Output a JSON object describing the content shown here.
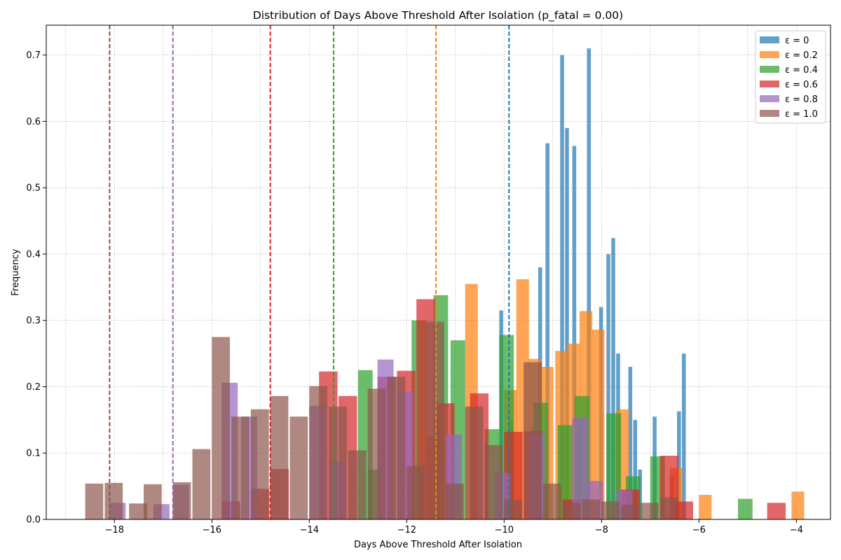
{
  "chart_data": {
    "type": "histogram",
    "title": "Distribution of Days Above Threshold After Isolation (p_fatal = 0.00)",
    "xlabel": "Days Above Threshold After Isolation",
    "ylabel": "Frequency",
    "xlim": [
      -19.4,
      -3.3
    ],
    "ylim": [
      0,
      0.745
    ],
    "xticks": [
      -18,
      -16,
      -14,
      -12,
      -10,
      -8,
      -6,
      -4
    ],
    "yticks": [
      0.0,
      0.1,
      0.2,
      0.3,
      0.4,
      0.5,
      0.6,
      0.7
    ],
    "grid": true,
    "legend_position": "top-right",
    "bar_opacity": 0.7,
    "series": [
      {
        "name": "ε = 0",
        "color": "#1f77b4",
        "bin_width": 0.08,
        "mean_line": -9.9,
        "bins": [
          [
            -10.1,
            0.315
          ],
          [
            -9.9,
            0.15
          ],
          [
            -9.45,
            0.14
          ],
          [
            -9.3,
            0.38
          ],
          [
            -9.15,
            0.567
          ],
          [
            -8.85,
            0.7
          ],
          [
            -8.75,
            0.59
          ],
          [
            -8.6,
            0.563
          ],
          [
            -8.5,
            0.14
          ],
          [
            -8.3,
            0.71
          ],
          [
            -8.05,
            0.32
          ],
          [
            -7.9,
            0.4
          ],
          [
            -7.8,
            0.424
          ],
          [
            -7.7,
            0.25
          ],
          [
            -7.45,
            0.23
          ],
          [
            -7.35,
            0.15
          ],
          [
            -7.25,
            0.075
          ],
          [
            -6.95,
            0.155
          ],
          [
            -6.6,
            0.065
          ],
          [
            -6.45,
            0.163
          ],
          [
            -6.35,
            0.25
          ]
        ]
      },
      {
        "name": "ε = 0.2",
        "color": "#ff7f0e",
        "bin_width": 0.26,
        "mean_line": -11.4,
        "bins": [
          [
            -11.6,
            0.125
          ],
          [
            -10.8,
            0.355
          ],
          [
            -10.0,
            0.195
          ],
          [
            -9.75,
            0.362
          ],
          [
            -9.5,
            0.242
          ],
          [
            -9.25,
            0.23
          ],
          [
            -8.95,
            0.254
          ],
          [
            -8.7,
            0.265
          ],
          [
            -8.45,
            0.314
          ],
          [
            -8.2,
            0.286
          ],
          [
            -7.7,
            0.166
          ],
          [
            -6.6,
            0.077
          ],
          [
            -6.0,
            0.037
          ],
          [
            -4.1,
            0.042
          ]
        ]
      },
      {
        "name": "ε = 0.4",
        "color": "#2ca02c",
        "bin_width": 0.3,
        "mean_line": -13.5,
        "bins": [
          [
            -13.0,
            0.225
          ],
          [
            -12.8,
            0.075
          ],
          [
            -11.9,
            0.3
          ],
          [
            -11.45,
            0.338
          ],
          [
            -11.1,
            0.27
          ],
          [
            -10.4,
            0.136
          ],
          [
            -10.1,
            0.278
          ],
          [
            -9.4,
            0.176
          ],
          [
            -8.9,
            0.142
          ],
          [
            -8.55,
            0.186
          ],
          [
            -7.9,
            0.16
          ],
          [
            -7.5,
            0.065
          ],
          [
            -7.0,
            0.095
          ],
          [
            -5.2,
            0.031
          ]
        ]
      },
      {
        "name": "ε = 0.6",
        "color": "#d62728",
        "bin_width": 0.38,
        "mean_line": -14.8,
        "bins": [
          [
            -15.8,
            0.027
          ],
          [
            -15.2,
            0.046
          ],
          [
            -14.8,
            0.076
          ],
          [
            -13.8,
            0.223
          ],
          [
            -13.4,
            0.186
          ],
          [
            -12.6,
            0.215
          ],
          [
            -12.2,
            0.224
          ],
          [
            -11.8,
            0.332
          ],
          [
            -11.4,
            0.175
          ],
          [
            -10.7,
            0.19
          ],
          [
            -10.0,
            0.132
          ],
          [
            -9.6,
            0.133
          ],
          [
            -8.8,
            0.03
          ],
          [
            -7.6,
            0.045
          ],
          [
            -6.8,
            0.096
          ],
          [
            -6.5,
            0.027
          ],
          [
            -4.6,
            0.025
          ]
        ]
      },
      {
        "name": "ε = 0.8",
        "color": "#9467bd",
        "bin_width": 0.33,
        "mean_line": -16.8,
        "bins": [
          [
            -18.1,
            0.025
          ],
          [
            -17.2,
            0.023
          ],
          [
            -16.8,
            0.052
          ],
          [
            -15.8,
            0.206
          ],
          [
            -15.4,
            0.155
          ],
          [
            -14.0,
            0.171
          ],
          [
            -13.6,
            0.087
          ],
          [
            -12.6,
            0.241
          ],
          [
            -12.2,
            0.193
          ],
          [
            -11.2,
            0.128
          ],
          [
            -10.2,
            0.07
          ],
          [
            -9.5,
            0.13
          ],
          [
            -8.6,
            0.153
          ],
          [
            -8.3,
            0.058
          ],
          [
            -7.7,
            0.044
          ]
        ]
      },
      {
        "name": "ε = 1.0",
        "color": "#8c564b",
        "bin_width": 0.37,
        "mean_line": -18.1,
        "bins": [
          [
            -18.6,
            0.054
          ],
          [
            -18.2,
            0.055
          ],
          [
            -17.7,
            0.024
          ],
          [
            -17.4,
            0.053
          ],
          [
            -16.8,
            0.056
          ],
          [
            -16.4,
            0.106
          ],
          [
            -16.0,
            0.275
          ],
          [
            -15.6,
            0.155
          ],
          [
            -15.2,
            0.166
          ],
          [
            -14.8,
            0.186
          ],
          [
            -14.4,
            0.155
          ],
          [
            -14.0,
            0.201
          ],
          [
            -13.6,
            0.17
          ],
          [
            -13.2,
            0.104
          ],
          [
            -12.8,
            0.197
          ],
          [
            -12.4,
            0.215
          ],
          [
            -12.0,
            0.08
          ],
          [
            -11.6,
            0.298
          ],
          [
            -11.2,
            0.054
          ],
          [
            -10.8,
            0.17
          ],
          [
            -10.4,
            0.112
          ],
          [
            -10.0,
            0.03
          ],
          [
            -9.6,
            0.237
          ],
          [
            -9.2,
            0.054
          ],
          [
            -8.8,
            0.025
          ],
          [
            -8.4,
            0.03
          ],
          [
            -8.0,
            0.027
          ],
          [
            -7.6,
            0.022
          ],
          [
            -7.2,
            0.025
          ],
          [
            -6.8,
            0.033
          ]
        ]
      }
    ]
  }
}
